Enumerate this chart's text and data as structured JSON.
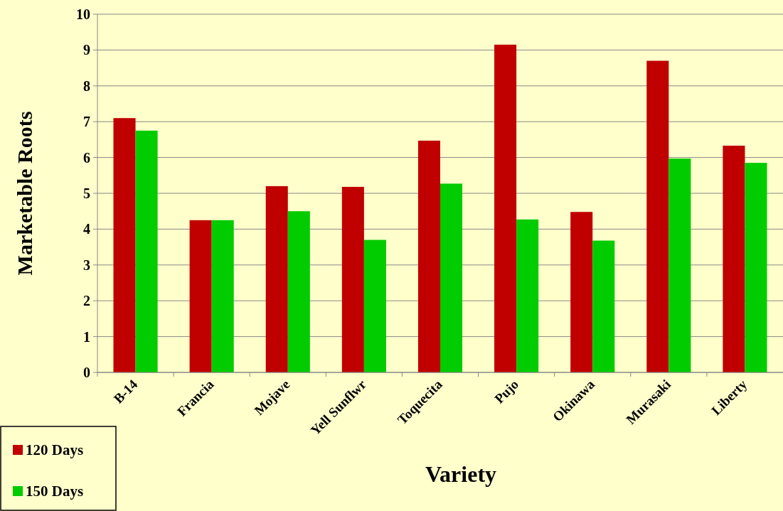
{
  "chart_data": {
    "type": "bar",
    "xlabel": "Variety",
    "ylabel": "Marketable Roots",
    "categories": [
      "B-14",
      "Francia",
      "Mojave",
      "Yell Sunflwr",
      "Toquecita",
      "Pujo",
      "Okinawa",
      "Murasaki",
      "Liberty"
    ],
    "series": [
      {
        "name": "120 Days",
        "color": "#c00000",
        "values": [
          7.1,
          4.25,
          5.2,
          5.18,
          6.47,
          9.15,
          4.48,
          8.7,
          6.33
        ]
      },
      {
        "name": "150 Days",
        "color": "#00cc00",
        "values": [
          6.75,
          4.25,
          4.5,
          3.7,
          5.27,
          4.27,
          3.68,
          5.97,
          5.85
        ]
      }
    ],
    "ylim": [
      0,
      10
    ],
    "yticks": [
      0,
      1,
      2,
      3,
      4,
      5,
      6,
      7,
      8,
      9,
      10
    ],
    "grid": "y",
    "legend": "bottom left"
  }
}
